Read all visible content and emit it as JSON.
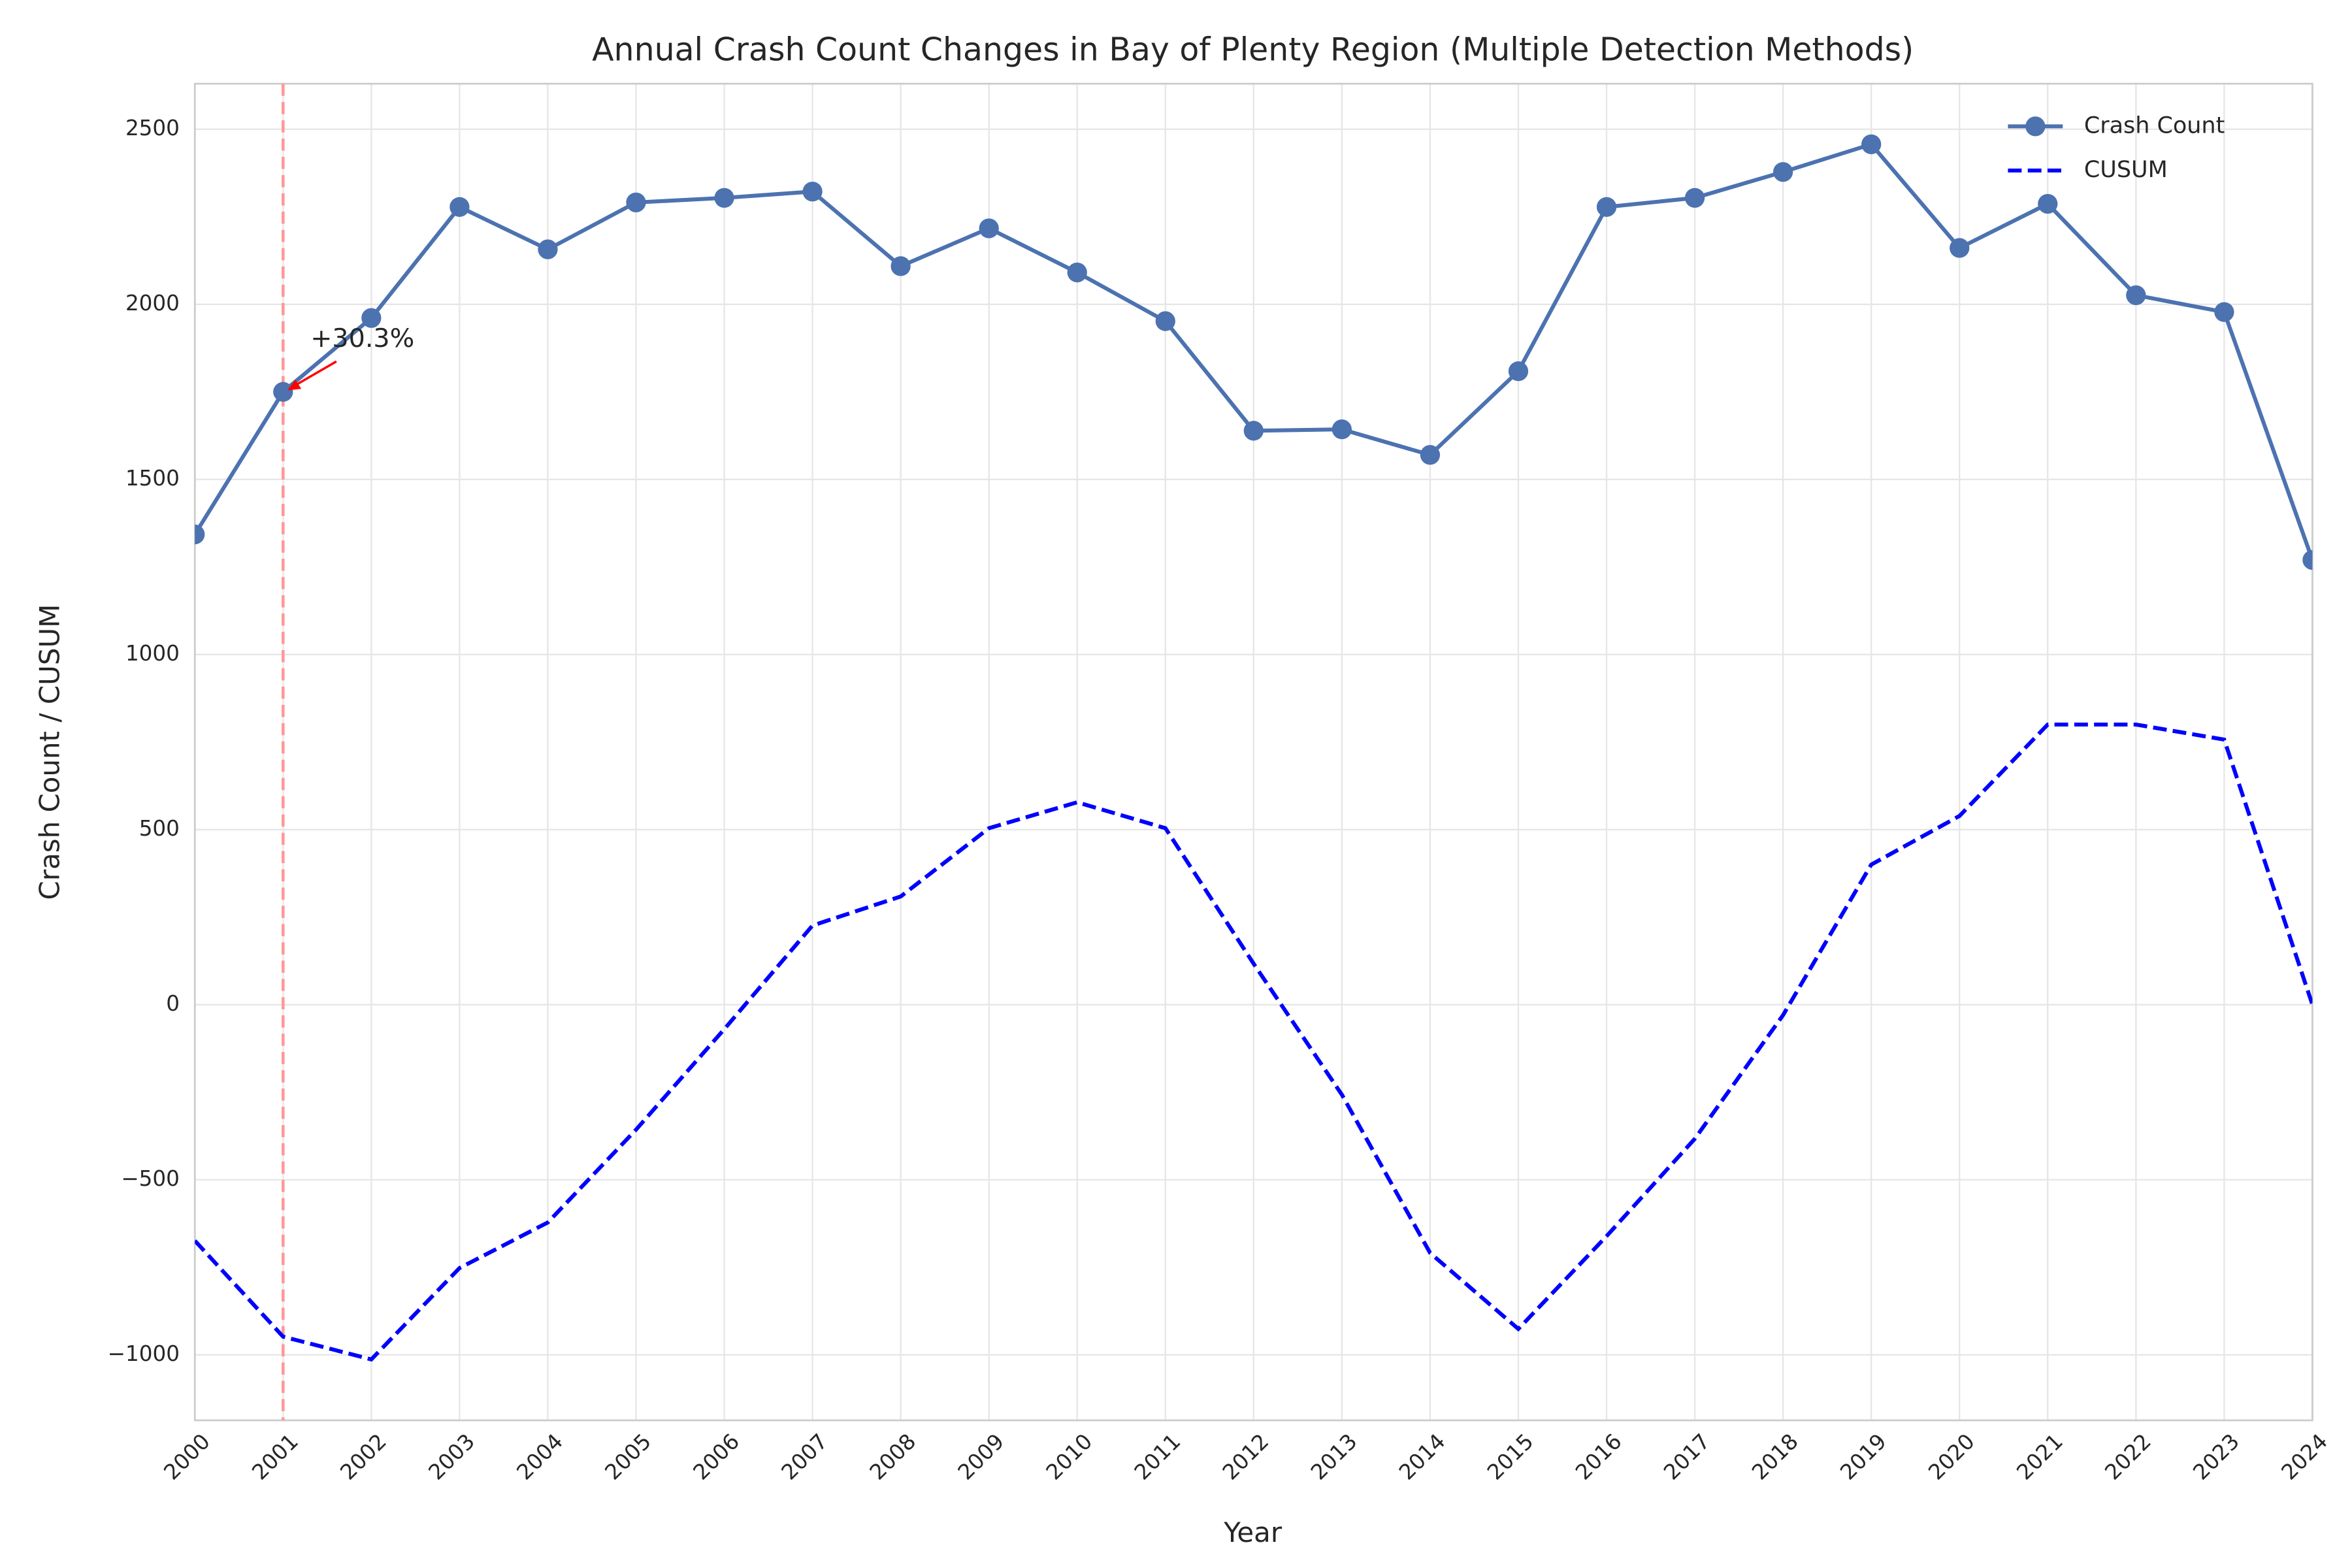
{
  "chart_data": {
    "type": "line",
    "title": "Annual Crash Count Changes in Bay of Plenty Region (Multiple Detection Methods)",
    "xlabel": "Year",
    "ylabel": "Crash Count / CUSUM",
    "x": [
      2000,
      2001,
      2002,
      2003,
      2004,
      2005,
      2006,
      2007,
      2008,
      2009,
      2010,
      2011,
      2012,
      2013,
      2014,
      2015,
      2016,
      2017,
      2018,
      2019,
      2020,
      2021,
      2022,
      2023,
      2024
    ],
    "series": [
      {
        "name": "Crash Count",
        "color": "#4c72b0",
        "style": "solid",
        "marker": true,
        "values": [
          1343,
          1750,
          1961,
          2278,
          2157,
          2291,
          2304,
          2322,
          2109,
          2217,
          2091,
          1952,
          1639,
          1643,
          1570,
          1809,
          2278,
          2304,
          2378,
          2457,
          2161,
          2287,
          2026,
          1978,
          1270
        ]
      },
      {
        "name": "CUSUM",
        "color": "#0000ff",
        "style": "dashed",
        "marker": false,
        "values": [
          -674,
          -948,
          -1013,
          -752,
          -622,
          -357,
          -70,
          226,
          309,
          504,
          578,
          504,
          117,
          -257,
          -709,
          -926,
          -661,
          -383,
          -30,
          400,
          539,
          800,
          800,
          757,
          0
        ]
      }
    ],
    "change_points": [
      {
        "x": 2001,
        "label": "+30.3%",
        "color": "#ff9999"
      }
    ],
    "xlim": [
      2000,
      2024
    ],
    "xticks": [
      2000,
      2001,
      2002,
      2003,
      2004,
      2005,
      2006,
      2007,
      2008,
      2009,
      2010,
      2011,
      2012,
      2013,
      2014,
      2015,
      2016,
      2017,
      2018,
      2019,
      2020,
      2021,
      2022,
      2023,
      2024
    ],
    "ylim": [
      -1187,
      2630
    ],
    "yticks": [
      {
        "value": -1000,
        "label": "−1000"
      },
      {
        "value": -500,
        "label": "−500"
      },
      0,
      500,
      1000,
      1500,
      2000,
      2500
    ],
    "grid": true,
    "legend": "upper right"
  }
}
